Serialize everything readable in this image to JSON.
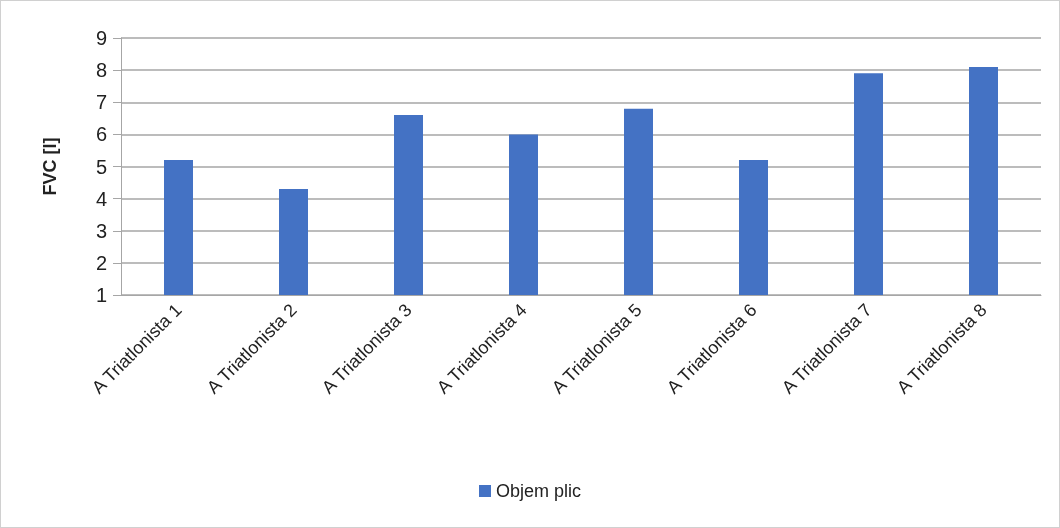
{
  "chart_data": {
    "type": "bar",
    "ylabel": "FVC [l]",
    "categories": [
      "A Triatlonista 1",
      "A Triatlonista 2",
      "A Triatlonista 3",
      "A Triatlonista 4",
      "A Triatlonista 5",
      "A Triatlonista 6",
      "A Triatlonista 7",
      "A Triatlonista 8"
    ],
    "series": [
      {
        "name": "Objem plic",
        "color": "#4472c4",
        "values": [
          5.2,
          4.3,
          6.6,
          6.0,
          6.8,
          5.2,
          7.9,
          8.1
        ]
      }
    ],
    "ylim": [
      1,
      9
    ],
    "yticks": [
      1,
      2,
      3,
      4,
      5,
      6,
      7,
      8,
      9
    ],
    "grid": "y",
    "legend": "bottom"
  }
}
